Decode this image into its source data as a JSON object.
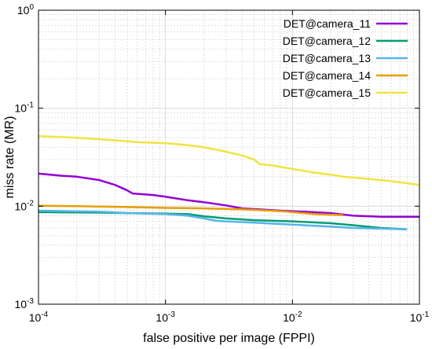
{
  "chart_data": {
    "type": "line",
    "xscale": "log",
    "yscale": "log",
    "xlim": [
      0.0001,
      0.1
    ],
    "ylim": [
      0.001,
      1
    ],
    "grid": true,
    "legend_position": "top-right",
    "xlabel": "false positive per image (FPPI)",
    "ylabel": "miss rate (MR)",
    "x_ticks": [
      {
        "value": 0.0001,
        "base": "10",
        "exp": "-4"
      },
      {
        "value": 0.001,
        "base": "10",
        "exp": "-3"
      },
      {
        "value": 0.01,
        "base": "10",
        "exp": "-2"
      },
      {
        "value": 0.1,
        "base": "10",
        "exp": "-1"
      }
    ],
    "y_ticks": [
      {
        "value": 0.001,
        "base": "10",
        "exp": "-3"
      },
      {
        "value": 0.01,
        "base": "10",
        "exp": "-2"
      },
      {
        "value": 0.1,
        "base": "10",
        "exp": "-1"
      },
      {
        "value": 1,
        "base": "10",
        "exp": "0"
      }
    ],
    "series": [
      {
        "name": "DET@camera_11",
        "color": "#9400d3",
        "points": [
          [
            0.0001,
            0.0215
          ],
          [
            0.00015,
            0.0205
          ],
          [
            0.0002,
            0.02
          ],
          [
            0.0003,
            0.0185
          ],
          [
            0.0004,
            0.0165
          ],
          [
            0.0005,
            0.0145
          ],
          [
            0.00055,
            0.0135
          ],
          [
            0.0008,
            0.013
          ],
          [
            0.001,
            0.0125
          ],
          [
            0.0015,
            0.0115
          ],
          [
            0.002,
            0.011
          ],
          [
            0.003,
            0.0102
          ],
          [
            0.004,
            0.0095
          ],
          [
            0.006,
            0.0092
          ],
          [
            0.008,
            0.009
          ],
          [
            0.012,
            0.0088
          ],
          [
            0.02,
            0.0085
          ],
          [
            0.03,
            0.008
          ],
          [
            0.05,
            0.0078
          ],
          [
            0.1,
            0.0078
          ]
        ]
      },
      {
        "name": "DET@camera_12",
        "color": "#009e73",
        "points": [
          [
            0.0001,
            0.0087
          ],
          [
            0.0003,
            0.0086
          ],
          [
            0.0005,
            0.0085
          ],
          [
            0.001,
            0.0084
          ],
          [
            0.0015,
            0.0083
          ],
          [
            0.002,
            0.0079
          ],
          [
            0.003,
            0.0075
          ],
          [
            0.005,
            0.0072
          ],
          [
            0.01,
            0.007
          ],
          [
            0.02,
            0.0067
          ],
          [
            0.03,
            0.0064
          ],
          [
            0.05,
            0.006
          ],
          [
            0.08,
            0.0058
          ]
        ]
      },
      {
        "name": "DET@camera_13",
        "color": "#56b4e9",
        "points": [
          [
            0.0001,
            0.009
          ],
          [
            0.0003,
            0.0088
          ],
          [
            0.0005,
            0.0085
          ],
          [
            0.001,
            0.0083
          ],
          [
            0.0015,
            0.008
          ],
          [
            0.002,
            0.0075
          ],
          [
            0.0025,
            0.0071
          ],
          [
            0.003,
            0.007
          ],
          [
            0.005,
            0.0068
          ],
          [
            0.01,
            0.0065
          ],
          [
            0.015,
            0.0063
          ],
          [
            0.02,
            0.0062
          ],
          [
            0.03,
            0.006
          ],
          [
            0.05,
            0.0059
          ],
          [
            0.08,
            0.0058
          ]
        ]
      },
      {
        "name": "DET@camera_14",
        "color": "#e69f00",
        "points": [
          [
            0.0001,
            0.0101
          ],
          [
            0.0002,
            0.01
          ],
          [
            0.0005,
            0.0098
          ],
          [
            0.001,
            0.0096
          ],
          [
            0.002,
            0.0095
          ],
          [
            0.004,
            0.0093
          ],
          [
            0.008,
            0.0089
          ],
          [
            0.015,
            0.0083
          ],
          [
            0.025,
            0.0081
          ]
        ]
      },
      {
        "name": "DET@camera_15",
        "color": "#f0e442",
        "points": [
          [
            0.0001,
            0.052
          ],
          [
            0.0002,
            0.05
          ],
          [
            0.0004,
            0.047
          ],
          [
            0.0006,
            0.045
          ],
          [
            0.001,
            0.044
          ],
          [
            0.0015,
            0.042
          ],
          [
            0.002,
            0.04
          ],
          [
            0.003,
            0.036
          ],
          [
            0.004,
            0.033
          ],
          [
            0.005,
            0.03
          ],
          [
            0.0055,
            0.027
          ],
          [
            0.007,
            0.026
          ],
          [
            0.01,
            0.024
          ],
          [
            0.015,
            0.022
          ],
          [
            0.02,
            0.021
          ],
          [
            0.025,
            0.02
          ],
          [
            0.04,
            0.019
          ],
          [
            0.06,
            0.018
          ],
          [
            0.1,
            0.0165
          ]
        ]
      }
    ]
  }
}
